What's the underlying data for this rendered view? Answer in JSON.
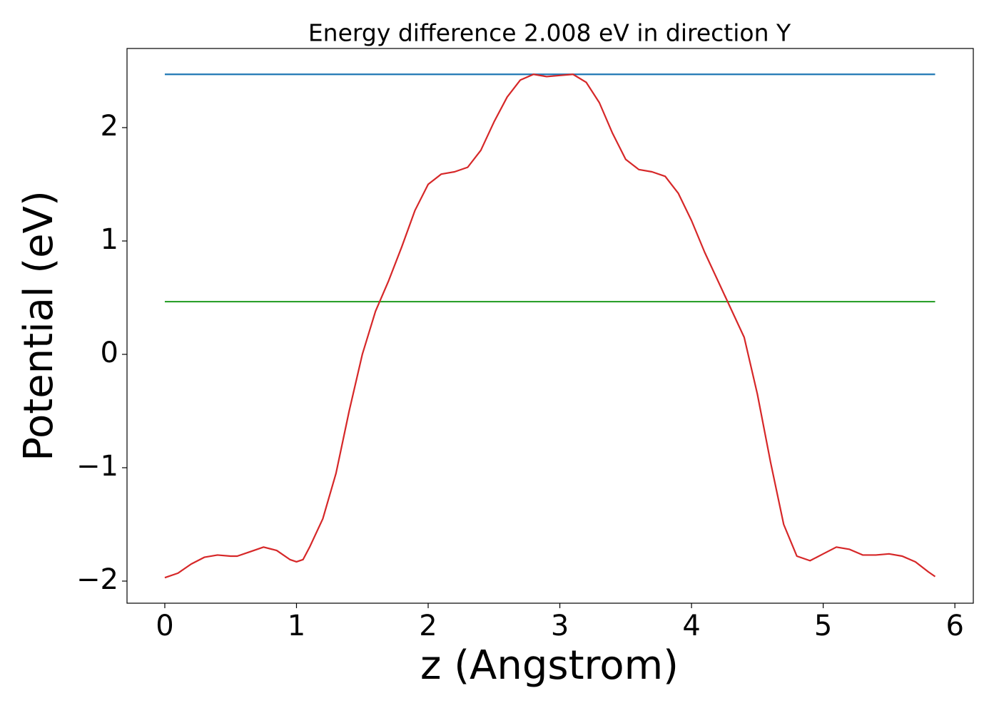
{
  "chart_data": {
    "type": "line",
    "title": "Energy difference 2.008 eV in direction Y",
    "xlabel": "z (Angstrom)",
    "ylabel": "Potential (eV)",
    "xlim": [
      -0.287,
      6.14
    ],
    "ylim": [
      -2.195,
      2.698
    ],
    "xticks": [
      0,
      1,
      2,
      3,
      4,
      5,
      6
    ],
    "yticks": [
      {
        "value": -2,
        "label": "−2"
      },
      {
        "value": -1,
        "label": "−1"
      },
      0,
      1,
      2
    ],
    "grid": false,
    "series": [
      {
        "color": "#1f77b4",
        "x": [
          0,
          5.85
        ],
        "values": [
          2.47,
          2.47
        ]
      },
      {
        "color": "#2ca02c",
        "x": [
          0,
          5.85
        ],
        "values": [
          0.465,
          0.465
        ]
      },
      {
        "color": "#d62728",
        "x": [
          0,
          0.1,
          0.2,
          0.3,
          0.4,
          0.5,
          0.55,
          0.65,
          0.75,
          0.85,
          0.95,
          1.0,
          1.05,
          1.1,
          1.2,
          1.3,
          1.4,
          1.5,
          1.6,
          1.7,
          1.8,
          1.9,
          2.0,
          2.1,
          2.2,
          2.3,
          2.4,
          2.5,
          2.6,
          2.7,
          2.8,
          2.9,
          3.0,
          3.1,
          3.2,
          3.3,
          3.4,
          3.5,
          3.6,
          3.7,
          3.8,
          3.9,
          4.0,
          4.1,
          4.2,
          4.3,
          4.4,
          4.5,
          4.6,
          4.7,
          4.8,
          4.9,
          5.0,
          5.1,
          5.2,
          5.3,
          5.4,
          5.5,
          5.6,
          5.7,
          5.8,
          5.85
        ],
        "values": [
          -1.97,
          -1.93,
          -1.85,
          -1.79,
          -1.77,
          -1.78,
          -1.78,
          -1.74,
          -1.7,
          -1.73,
          -1.81,
          -1.83,
          -1.81,
          -1.7,
          -1.45,
          -1.05,
          -0.5,
          0.0,
          0.38,
          0.65,
          0.95,
          1.27,
          1.5,
          1.59,
          1.61,
          1.65,
          1.8,
          2.05,
          2.27,
          2.42,
          2.47,
          2.45,
          2.46,
          2.47,
          2.4,
          2.22,
          1.95,
          1.72,
          1.63,
          1.61,
          1.57,
          1.42,
          1.18,
          0.9,
          0.65,
          0.4,
          0.15,
          -0.35,
          -0.95,
          -1.5,
          -1.78,
          -1.82,
          -1.76,
          -1.7,
          -1.72,
          -1.77,
          -1.77,
          -1.76,
          -1.78,
          -1.83,
          -1.92,
          -1.96
        ]
      }
    ]
  }
}
